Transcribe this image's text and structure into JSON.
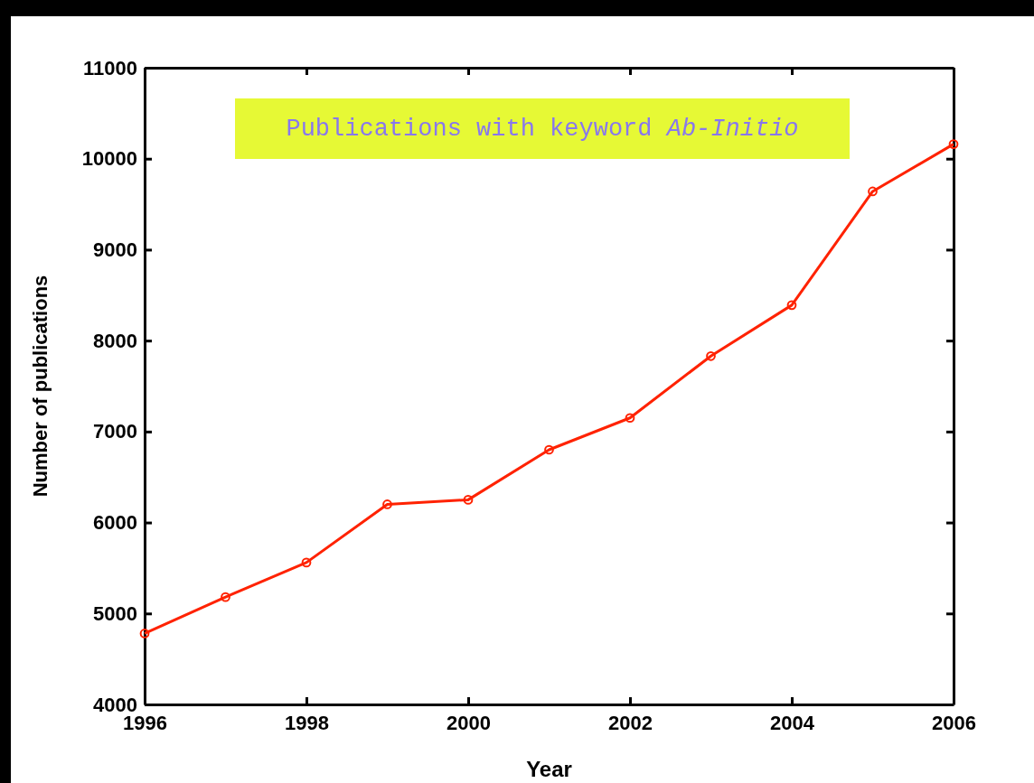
{
  "chart_data": {
    "type": "line",
    "title": "Publications with keyword Ab-Initio",
    "xlabel": "Year",
    "ylabel": "Number of publications",
    "x": [
      1996,
      1997,
      1998,
      1999,
      2000,
      2001,
      2002,
      2003,
      2004,
      2005,
      2006
    ],
    "series": [
      {
        "color": "#ff2200",
        "values": [
          4780,
          5180,
          5560,
          6200,
          6250,
          6800,
          7150,
          7830,
          8390,
          9640,
          10160
        ]
      }
    ],
    "xlim": [
      1996,
      2006
    ],
    "xticks": [
      1996,
      1998,
      2000,
      2002,
      2004,
      2006
    ],
    "ylim": [
      4000,
      11000
    ],
    "yticks": [
      4000,
      5000,
      6000,
      7000,
      8000,
      9000,
      10000,
      11000
    ],
    "grid": false,
    "marker": "circle",
    "line_style": "solid"
  }
}
